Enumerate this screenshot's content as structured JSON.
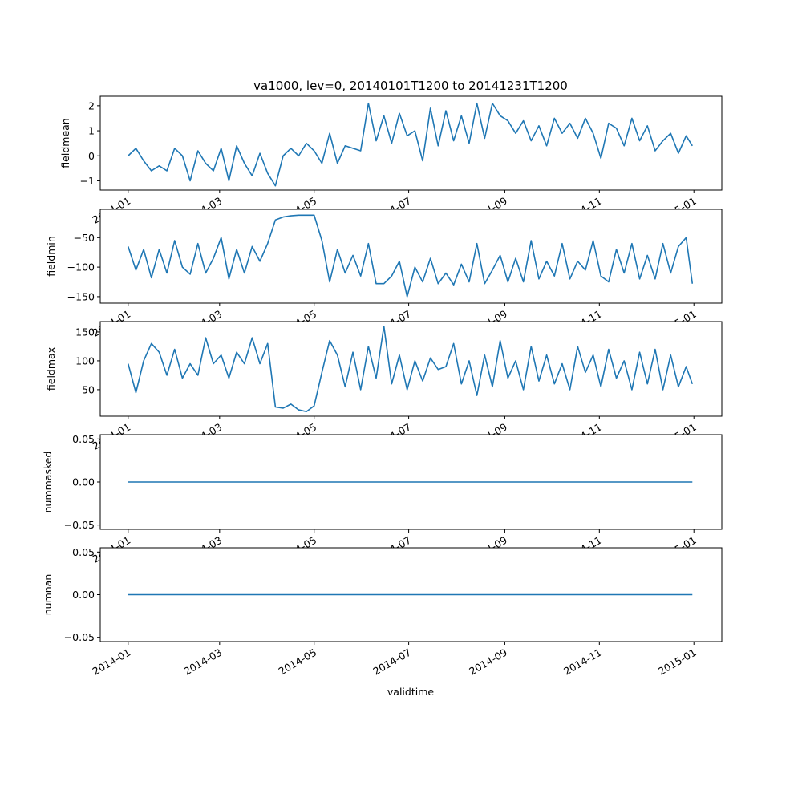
{
  "chart_data": {
    "type": "line",
    "title": "va1000, lev=0, 20140101T1200 to 20141231T1200",
    "xlabel": "validtime",
    "x_start": "2014-01-01",
    "x_step_days": 5,
    "x_range_days": [
      -18,
      383
    ],
    "x_ticks": [
      {
        "day": 0,
        "label": "2014-01"
      },
      {
        "day": 59,
        "label": "2014-03"
      },
      {
        "day": 120,
        "label": "2014-05"
      },
      {
        "day": 181,
        "label": "2014-07"
      },
      {
        "day": 243,
        "label": "2014-09"
      },
      {
        "day": 304,
        "label": "2014-11"
      },
      {
        "day": 365,
        "label": "2015-01"
      }
    ],
    "line_color": "#1f77b4",
    "panels": [
      {
        "ylabel": "fieldmean",
        "ylim": [
          -1.37,
          2.38
        ],
        "y_ticks": [
          {
            "v": 2,
            "label": "2"
          },
          {
            "v": 1,
            "label": "1"
          },
          {
            "v": 0,
            "label": "0"
          },
          {
            "v": -1,
            "label": "−1"
          }
        ],
        "values": [
          0.0,
          0.3,
          -0.2,
          -0.6,
          -0.4,
          -0.6,
          0.3,
          0.0,
          -1.0,
          0.2,
          -0.3,
          -0.6,
          0.3,
          -1.0,
          0.4,
          -0.3,
          -0.8,
          0.1,
          -0.7,
          -1.2,
          0.0,
          0.3,
          0.0,
          0.5,
          0.2,
          -0.3,
          0.9,
          -0.3,
          0.4,
          0.3,
          0.2,
          2.1,
          0.6,
          1.6,
          0.5,
          1.7,
          0.8,
          1.0,
          -0.2,
          1.9,
          0.4,
          1.8,
          0.6,
          1.6,
          0.5,
          2.1,
          0.7,
          2.1,
          1.6,
          1.4,
          0.9,
          1.4,
          0.6,
          1.2,
          0.4,
          1.5,
          0.9,
          1.3,
          0.7,
          1.5,
          0.9,
          -0.1,
          1.3,
          1.1,
          0.4,
          1.5,
          0.6,
          1.2,
          0.2,
          0.6,
          0.9,
          0.1,
          0.8,
          0.4
        ]
      },
      {
        "ylabel": "fieldmin",
        "ylim": [
          -161,
          -2
        ],
        "y_ticks": [
          {
            "v": -50,
            "label": "−50"
          },
          {
            "v": -100,
            "label": "−100"
          },
          {
            "v": -150,
            "label": "−150"
          }
        ],
        "values": [
          -65,
          -105,
          -70,
          -118,
          -70,
          -110,
          -55,
          -100,
          -112,
          -60,
          -110,
          -85,
          -50,
          -120,
          -70,
          -110,
          -65,
          -90,
          -60,
          -20,
          -15,
          -13,
          -12,
          -12,
          -12,
          -55,
          -125,
          -70,
          -110,
          -80,
          -115,
          -60,
          -128,
          -128,
          -115,
          -90,
          -150,
          -100,
          -125,
          -85,
          -128,
          -110,
          -130,
          -95,
          -125,
          -60,
          -128,
          -105,
          -80,
          -125,
          -85,
          -125,
          -55,
          -120,
          -90,
          -115,
          -60,
          -120,
          -90,
          -105,
          -55,
          -115,
          -125,
          -70,
          -110,
          -60,
          -120,
          -80,
          -120,
          -60,
          -110,
          -65,
          -50,
          -128
        ]
      },
      {
        "ylabel": "fieldmax",
        "ylim": [
          4,
          168
        ],
        "y_ticks": [
          {
            "v": 150,
            "label": "150"
          },
          {
            "v": 100,
            "label": "100"
          },
          {
            "v": 50,
            "label": "50"
          }
        ],
        "values": [
          95,
          45,
          100,
          130,
          115,
          75,
          120,
          70,
          95,
          75,
          140,
          95,
          110,
          70,
          115,
          95,
          140,
          95,
          130,
          20,
          18,
          25,
          15,
          12,
          22,
          80,
          135,
          110,
          55,
          115,
          50,
          125,
          70,
          160,
          60,
          110,
          50,
          100,
          65,
          105,
          85,
          90,
          130,
          60,
          100,
          40,
          110,
          55,
          135,
          70,
          100,
          50,
          125,
          65,
          110,
          60,
          95,
          50,
          125,
          80,
          110,
          55,
          120,
          70,
          100,
          50,
          115,
          60,
          120,
          50,
          110,
          55,
          90,
          60
        ]
      },
      {
        "ylabel": "nummasked",
        "ylim": [
          -0.055,
          0.055
        ],
        "y_ticks": [
          {
            "v": 0.05,
            "label": "0.05"
          },
          {
            "v": 0,
            "label": "0.00"
          },
          {
            "v": -0.05,
            "label": "−0.05"
          }
        ],
        "values": [
          0,
          0
        ]
      },
      {
        "ylabel": "numnan",
        "ylim": [
          -0.055,
          0.055
        ],
        "y_ticks": [
          {
            "v": 0.05,
            "label": "0.05"
          },
          {
            "v": 0,
            "label": "0.00"
          },
          {
            "v": -0.05,
            "label": "−0.05"
          }
        ],
        "values": [
          0,
          0
        ]
      }
    ]
  }
}
